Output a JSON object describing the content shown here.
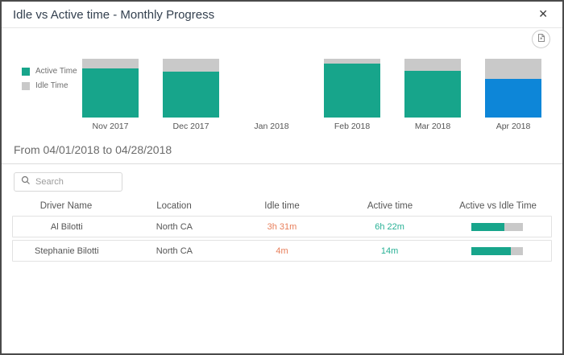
{
  "dialog": {
    "title": "Idle vs Active time - Monthly Progress",
    "close_label": "✕"
  },
  "colors": {
    "active_teal": "#17a58b",
    "idle_gray": "#c9c9c9",
    "selected_blue": "#0d86d8",
    "idle_text": "#e87e5a",
    "active_text": "#27b095"
  },
  "chart_data": {
    "type": "bar",
    "stacked": true,
    "title": "Idle vs Active time - Monthly Progress",
    "categories": [
      "Nov 2017",
      "Dec 2017",
      "Jan 2018",
      "Feb 2018",
      "Mar 2018",
      "Apr 2018"
    ],
    "series": [
      {
        "name": "Active Time",
        "color": "#17a58b",
        "values": [
          84,
          78,
          null,
          92,
          79,
          66
        ]
      },
      {
        "name": "Idle Time",
        "color": "#c9c9c9",
        "values": [
          16,
          22,
          null,
          8,
          21,
          34
        ]
      }
    ],
    "unit": "percent of total bar height",
    "highlight": {
      "category": "Apr 2018",
      "active_color": "#0d86d8"
    },
    "legend_position": "left",
    "grid": false
  },
  "legend": {
    "items": [
      {
        "label": "Active Time",
        "color": "#17a58b"
      },
      {
        "label": "Idle Time",
        "color": "#c9c9c9"
      }
    ]
  },
  "period": {
    "text": "From 04/01/2018 to 04/28/2018"
  },
  "search": {
    "placeholder": "Search"
  },
  "table": {
    "columns": [
      "Driver Name",
      "Location",
      "Idle time",
      "Active time",
      "Active vs Idle Time"
    ],
    "rows": [
      {
        "driver": "Al Bilotti",
        "location": "North CA",
        "idle": "3h 31m",
        "active": "6h 22m",
        "active_pct": 64
      },
      {
        "driver": "Stephanie Bilotti",
        "location": "North CA",
        "idle": "4m",
        "active": "14m",
        "active_pct": 76
      }
    ]
  }
}
